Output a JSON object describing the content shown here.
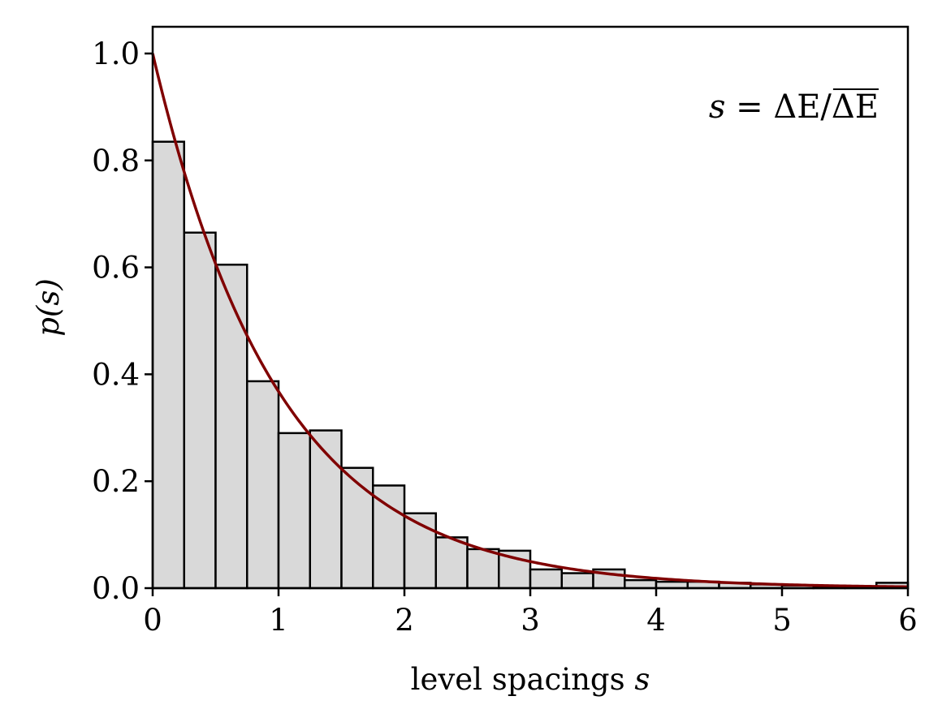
{
  "chart_data": {
    "type": "bar",
    "subtype": "histogram",
    "xlabel": "level spacings s",
    "xlabel_text": "level spacings ",
    "xlabel_var": "s",
    "ylabel": "p(s)",
    "xlim": [
      0,
      6
    ],
    "ylim": [
      0,
      1.05
    ],
    "xticks": [
      0,
      1,
      2,
      3,
      4,
      5,
      6
    ],
    "xtick_labels": [
      "0",
      "1",
      "2",
      "3",
      "4",
      "5",
      "6"
    ],
    "yticks": [
      0,
      0.2,
      0.4,
      0.6,
      0.8,
      1.0
    ],
    "ytick_labels": [
      "0.0",
      "0.2",
      "0.4",
      "0.6",
      "0.8",
      "1.0"
    ],
    "grid": false,
    "bin_width": 0.25,
    "bin_edges": [
      0,
      0.25,
      0.5,
      0.75,
      1.0,
      1.25,
      1.5,
      1.75,
      2.0,
      2.25,
      2.5,
      2.75,
      3.0,
      3.25,
      3.5,
      3.75,
      4.0,
      4.25,
      4.5,
      4.75,
      5.0,
      5.25,
      5.5,
      5.75,
      6.0
    ],
    "values": [
      0.835,
      0.665,
      0.605,
      0.387,
      0.29,
      0.295,
      0.225,
      0.192,
      0.14,
      0.095,
      0.073,
      0.07,
      0.035,
      0.028,
      0.035,
      0.015,
      0.012,
      0.012,
      0.01,
      0.007,
      0.005,
      0.003,
      0.003,
      0.01
    ],
    "bar_fill": "#d9d9d9",
    "bar_edge": "#000000",
    "curve": {
      "function": "exp(-s)",
      "color": "#800000"
    },
    "annotation": "s = ΔE/ΔE",
    "annotation_parts": {
      "lhs": "s",
      "eq": " = ΔE/",
      "overline": "ΔE"
    },
    "annotation_position": "top-right"
  }
}
